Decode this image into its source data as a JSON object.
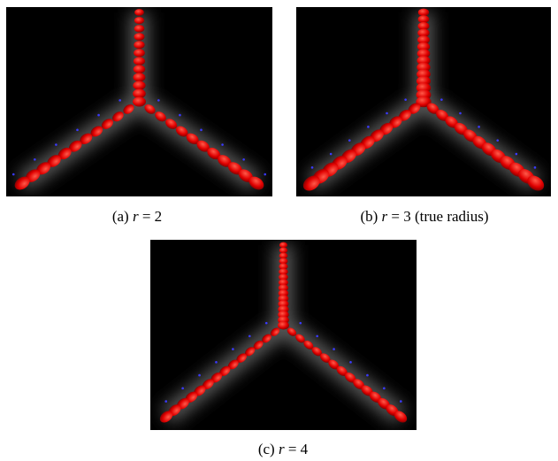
{
  "figures": [
    {
      "label": "(a)",
      "variable": "r",
      "relation": "= 2"
    },
    {
      "label": "(b)",
      "variable": "r",
      "relation": "= 3 (true radius)"
    },
    {
      "label": "(c)",
      "variable": "r",
      "relation": "= 4"
    }
  ]
}
